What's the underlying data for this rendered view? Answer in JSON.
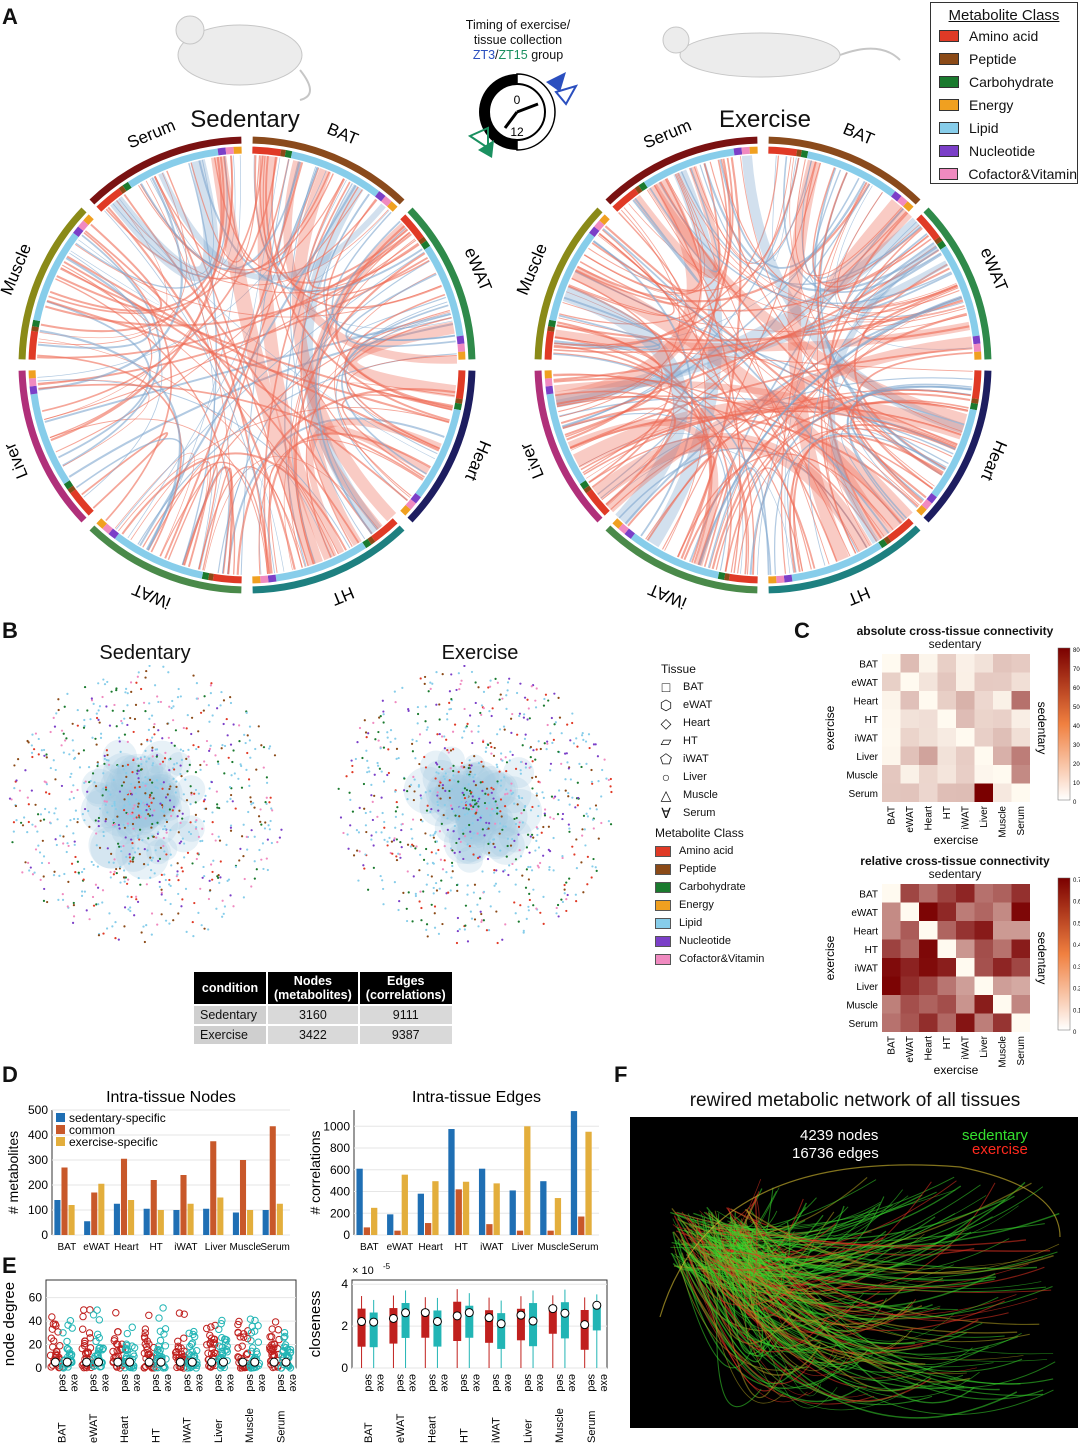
{
  "panels": [
    "A",
    "B",
    "C",
    "D",
    "E",
    "F"
  ],
  "panelA": {
    "timing_text_1": "Timing of exercise/",
    "timing_text_2": "tissue collection",
    "zt3": "ZT3",
    "slash": "/",
    "zt15": "ZT15",
    "group": " group",
    "clock_top": "0",
    "clock_bottom": "12",
    "sedentary_title": "Sedentary",
    "exercise_title": "Exercise",
    "tissues": [
      "BAT",
      "eWAT",
      "Heart",
      "HT",
      "iWAT",
      "Liver",
      "Muscle",
      "Serum"
    ]
  },
  "metabolite_legend": {
    "title": "Metabolite Class",
    "items": [
      {
        "label": "Amino acid",
        "color": "#e03a26"
      },
      {
        "label": "Peptide",
        "color": "#8b4a17"
      },
      {
        "label": "Carbohydrate",
        "color": "#1a7a2e"
      },
      {
        "label": "Energy",
        "color": "#f0a020"
      },
      {
        "label": "Lipid",
        "color": "#87cdea"
      },
      {
        "label": "Nucleotide",
        "color": "#7b3fc8"
      },
      {
        "label": "Cofactor&Vitamin",
        "color": "#f08ac0"
      }
    ]
  },
  "panelB": {
    "sedentary_title": "Sedentary",
    "exercise_title": "Exercise",
    "tissue_title": "Tissue",
    "tissue_items": [
      "BAT",
      "eWAT",
      "Heart",
      "HT",
      "iWAT",
      "Liver",
      "Muscle",
      "Serum"
    ],
    "class_title": "Metabolite Class",
    "table": {
      "headers": [
        "condition",
        "Nodes",
        "(metabolites)",
        "Edges",
        "(correlations)"
      ],
      "rows": [
        {
          "condition": "Sedentary",
          "nodes": "3160",
          "edges": "9111"
        },
        {
          "condition": "Exercise",
          "nodes": "3422",
          "edges": "9387"
        }
      ]
    }
  },
  "panelC": {
    "abs_title": "absolute cross-tissue connectivity",
    "rel_title": "relative cross-tissue connectivity",
    "top_label": "sedentary",
    "left_label": "exercise",
    "right_label": "sedentary",
    "bottom_label": "exercise",
    "abs_scale": [
      "800",
      "700",
      "600",
      "500",
      "400",
      "300",
      "200",
      "100",
      "0"
    ],
    "rel_scale": [
      "0.7",
      "0.6",
      "0.5",
      "0.4",
      "0.3",
      "0.2",
      "0.1",
      "0"
    ]
  },
  "chart_data": [
    {
      "type": "bar",
      "title": "Intra-tissue Nodes",
      "ylabel": "# metabolites",
      "categories": [
        "BAT",
        "eWAT",
        "Heart",
        "HT",
        "iWAT",
        "Liver",
        "Muscle",
        "Serum"
      ],
      "ylim": [
        0,
        500
      ],
      "yticks": [
        0,
        100,
        200,
        300,
        400,
        500
      ],
      "series": [
        {
          "name": "sedentary-specific",
          "color": "#1f6fb4",
          "values": [
            140,
            55,
            125,
            105,
            100,
            105,
            90,
            100
          ]
        },
        {
          "name": "common",
          "color": "#c8582a",
          "values": [
            270,
            170,
            305,
            220,
            240,
            375,
            300,
            435
          ]
        },
        {
          "name": "exercise-specific",
          "color": "#e3ae3c",
          "values": [
            120,
            205,
            140,
            100,
            125,
            150,
            100,
            125
          ]
        }
      ],
      "legend": "top-left"
    },
    {
      "type": "bar",
      "title": "Intra-tissue Edges",
      "ylabel": "# correlations",
      "categories": [
        "BAT",
        "eWAT",
        "Heart",
        "HT",
        "iWAT",
        "Liver",
        "Muscle",
        "Serum"
      ],
      "ylim": [
        0,
        1150
      ],
      "yticks": [
        0,
        200,
        400,
        600,
        800,
        1000
      ],
      "series": [
        {
          "name": "sedentary-specific",
          "color": "#1f6fb4",
          "values": [
            610,
            190,
            380,
            975,
            610,
            410,
            495,
            1140
          ]
        },
        {
          "name": "common",
          "color": "#c8582a",
          "values": [
            70,
            40,
            110,
            420,
            100,
            40,
            40,
            170
          ]
        },
        {
          "name": "exercise-specific",
          "color": "#e3ae3c",
          "values": [
            250,
            555,
            495,
            490,
            475,
            1000,
            340,
            950
          ]
        }
      ]
    },
    {
      "type": "scatter",
      "ylabel": "node degree",
      "yticks": [
        0,
        20,
        40,
        60
      ],
      "ylim": [
        0,
        75
      ],
      "categories": [
        "BAT",
        "eWAT",
        "Heart",
        "HT",
        "iWAT",
        "Liver",
        "Muscle",
        "Serum"
      ],
      "groups": [
        "sed",
        "exe"
      ]
    },
    {
      "type": "box",
      "ylabel": "closeness",
      "multiplier": "× 10",
      "exponent": "-5",
      "yticks": [
        0,
        2,
        4
      ],
      "ylim": [
        0,
        4.2
      ],
      "categories": [
        "BAT",
        "eWAT",
        "Heart",
        "HT",
        "iWAT",
        "Liver",
        "Muscle",
        "Serum"
      ],
      "groups": [
        "sed",
        "exe"
      ]
    }
  ],
  "panelF": {
    "title": "rewired metabolic network of all tissues",
    "nodes": "4239 nodes",
    "edges": "16736 edges",
    "sedentary": "sedentary",
    "exercise": "exercise"
  }
}
